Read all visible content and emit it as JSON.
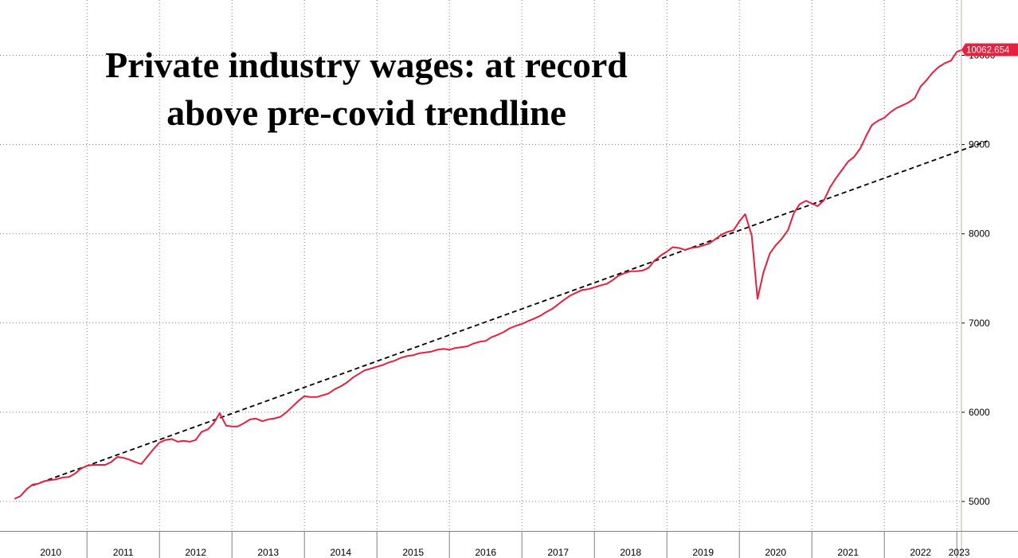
{
  "chart_data": {
    "type": "line",
    "title": "Private industry wages: at record above pre-covid trendline",
    "title_lines": [
      "Private industry wages: at record",
      "above pre-covid trendline"
    ],
    "xlabel": "",
    "ylabel": "",
    "ylim": [
      4670,
      10620
    ],
    "y_ticks": [
      5000,
      6000,
      7000,
      8000,
      9000,
      10000
    ],
    "y_tick_labels": [
      "5000",
      "6000",
      "7000",
      "8000",
      "9000",
      "10000"
    ],
    "year_labels": [
      "2010",
      "2011",
      "2012",
      "2013",
      "2014",
      "2015",
      "2016",
      "2017",
      "2018",
      "2019",
      "2020",
      "2021",
      "2022",
      "2023"
    ],
    "grid": true,
    "last_value_label": "10062.654",
    "colors": {
      "series": "#e8203e",
      "trend": "#000000",
      "grid": "#808080"
    },
    "series": [
      {
        "name": "",
        "x": [
          2010.0,
          2010.08,
          2010.17,
          2010.25,
          2010.33,
          2010.42,
          2010.5,
          2010.58,
          2010.67,
          2010.75,
          2010.83,
          2010.92,
          2011.0,
          2011.08,
          2011.17,
          2011.25,
          2011.33,
          2011.42,
          2011.5,
          2011.58,
          2011.67,
          2011.75,
          2011.83,
          2011.92,
          2012.0,
          2012.08,
          2012.17,
          2012.25,
          2012.33,
          2012.42,
          2012.5,
          2012.58,
          2012.67,
          2012.75,
          2012.83,
          2012.92,
          2013.0,
          2013.08,
          2013.17,
          2013.25,
          2013.33,
          2013.42,
          2013.5,
          2013.58,
          2013.67,
          2013.75,
          2013.83,
          2013.92,
          2014.0,
          2014.08,
          2014.17,
          2014.25,
          2014.33,
          2014.42,
          2014.5,
          2014.58,
          2014.67,
          2014.75,
          2014.83,
          2014.92,
          2015.0,
          2015.08,
          2015.17,
          2015.25,
          2015.33,
          2015.42,
          2015.5,
          2015.58,
          2015.67,
          2015.75,
          2015.83,
          2015.92,
          2016.0,
          2016.08,
          2016.17,
          2016.25,
          2016.33,
          2016.42,
          2016.5,
          2016.58,
          2016.67,
          2016.75,
          2016.83,
          2016.92,
          2017.0,
          2017.08,
          2017.17,
          2017.25,
          2017.33,
          2017.42,
          2017.5,
          2017.58,
          2017.67,
          2017.75,
          2017.83,
          2017.92,
          2018.0,
          2018.08,
          2018.17,
          2018.25,
          2018.33,
          2018.42,
          2018.5,
          2018.58,
          2018.67,
          2018.75,
          2018.83,
          2018.92,
          2019.0,
          2019.08,
          2019.17,
          2019.25,
          2019.33,
          2019.42,
          2019.5,
          2019.58,
          2019.67,
          2019.75,
          2019.83,
          2019.92,
          2020.0,
          2020.08,
          2020.17,
          2020.25,
          2020.33,
          2020.42,
          2020.5,
          2020.58,
          2020.67,
          2020.75,
          2020.83,
          2020.92,
          2021.0,
          2021.08,
          2021.17,
          2021.25,
          2021.33,
          2021.42,
          2021.5,
          2021.58,
          2021.67,
          2021.75,
          2021.83,
          2021.92,
          2022.0,
          2022.08,
          2022.17,
          2022.25,
          2022.33,
          2022.42,
          2022.5,
          2022.58,
          2022.67,
          2022.75,
          2022.83,
          2022.92,
          2023.0,
          2023.08
        ],
        "y": [
          5030,
          5060,
          5140,
          5190,
          5200,
          5230,
          5240,
          5250,
          5270,
          5275,
          5310,
          5370,
          5400,
          5410,
          5410,
          5410,
          5440,
          5500,
          5490,
          5470,
          5440,
          5420,
          5500,
          5590,
          5660,
          5690,
          5700,
          5670,
          5680,
          5670,
          5690,
          5780,
          5810,
          5880,
          5990,
          5850,
          5840,
          5840,
          5880,
          5920,
          5930,
          5900,
          5920,
          5930,
          5950,
          6000,
          6060,
          6130,
          6180,
          6170,
          6170,
          6190,
          6210,
          6260,
          6290,
          6330,
          6390,
          6430,
          6470,
          6490,
          6510,
          6530,
          6560,
          6580,
          6610,
          6630,
          6640,
          6660,
          6670,
          6680,
          6700,
          6710,
          6700,
          6720,
          6730,
          6740,
          6770,
          6790,
          6800,
          6840,
          6870,
          6900,
          6940,
          6970,
          6990,
          7020,
          7050,
          7080,
          7120,
          7160,
          7210,
          7260,
          7310,
          7340,
          7370,
          7380,
          7400,
          7420,
          7440,
          7480,
          7530,
          7560,
          7580,
          7580,
          7590,
          7620,
          7700,
          7760,
          7800,
          7850,
          7840,
          7820,
          7840,
          7850,
          7870,
          7890,
          7940,
          7990,
          8020,
          8040,
          8140,
          8220,
          7980,
          7270,
          7560,
          7780,
          7870,
          7940,
          8040,
          8230,
          8330,
          8370,
          8340,
          8310,
          8380,
          8520,
          8620,
          8720,
          8810,
          8860,
          8960,
          9100,
          9220,
          9270,
          9300,
          9360,
          9410,
          9440,
          9470,
          9520,
          9650,
          9720,
          9810,
          9870,
          9910,
          9940,
          10040,
          10063
        ]
      }
    ],
    "trendline": {
      "x": [
        2010.25,
        2023.42
      ],
      "y": [
        5180,
        9040
      ]
    }
  }
}
